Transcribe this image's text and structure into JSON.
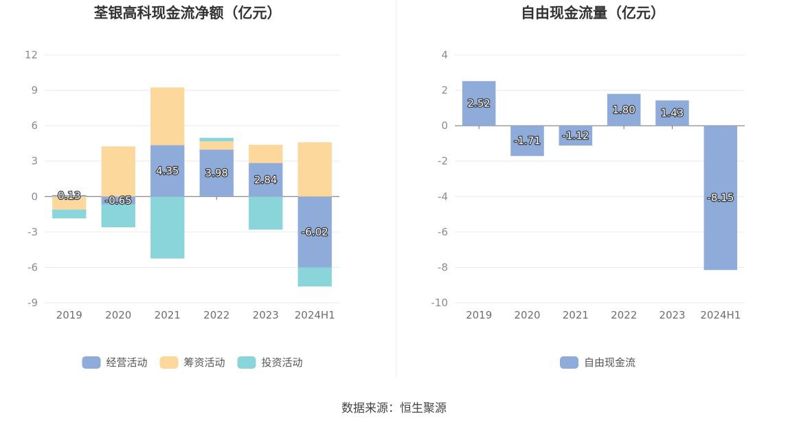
{
  "source_text": "数据来源：恒生聚源",
  "chart_data": [
    {
      "type": "bar",
      "stacked": true,
      "title": "荃银高科现金流净额（亿元）",
      "categories": [
        "2019",
        "2020",
        "2021",
        "2022",
        "2023",
        "2024H1"
      ],
      "ylim": [
        -9,
        12
      ],
      "yticks": [
        12,
        9,
        6,
        3,
        0,
        -3,
        -6,
        -9
      ],
      "grid": true,
      "legend_position": "bottom",
      "series": [
        {
          "name": "经营活动",
          "color": "#8eabd9",
          "values": [
            0.13,
            -0.65,
            4.35,
            3.98,
            2.84,
            -6.02
          ],
          "labels": [
            "0.13",
            "-0.65",
            "4.35",
            "3.98",
            "2.84",
            "-6.02"
          ]
        },
        {
          "name": "筹资活动",
          "color": "#fdd89c",
          "values": [
            -1.1,
            4.25,
            4.9,
            0.7,
            1.55,
            4.6
          ]
        },
        {
          "name": "投资活动",
          "color": "#89d5d9",
          "values": [
            -0.75,
            -1.95,
            -5.25,
            0.3,
            -2.8,
            -1.6
          ]
        }
      ]
    },
    {
      "type": "bar",
      "title": "自由现金流量（亿元）",
      "categories": [
        "2019",
        "2020",
        "2021",
        "2022",
        "2023",
        "2024H1"
      ],
      "ylim": [
        -10,
        4
      ],
      "yticks": [
        4,
        2,
        0,
        -2,
        -4,
        -6,
        -8,
        -10
      ],
      "grid": true,
      "legend_position": "bottom",
      "series": [
        {
          "name": "自由现金流",
          "color": "#8eabd9",
          "values": [
            2.52,
            -1.71,
            -1.12,
            1.8,
            1.43,
            -8.15
          ],
          "labels": [
            "2.52",
            "-1.71",
            "-1.12",
            "1.80",
            "1.43",
            "-8.15"
          ]
        }
      ]
    }
  ]
}
